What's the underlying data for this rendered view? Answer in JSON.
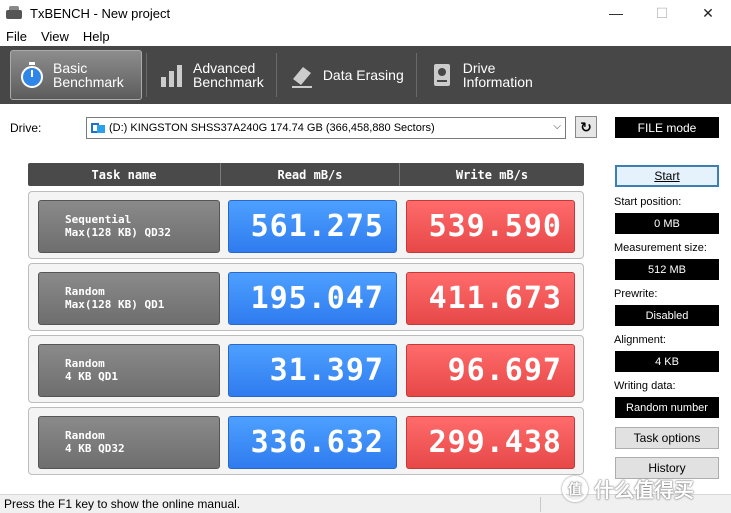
{
  "window": {
    "title": "TxBENCH - New project",
    "controls": {
      "minimize": "—",
      "maximize": "☐",
      "close": "✕"
    }
  },
  "menu": [
    "File",
    "View",
    "Help"
  ],
  "tabs": [
    {
      "label": "Basic\nBenchmark",
      "icon": "stopwatch-icon",
      "active": true
    },
    {
      "label": "Advanced\nBenchmark",
      "icon": "bar-chart-icon",
      "active": false
    },
    {
      "label": "Data Erasing",
      "icon": "eraser-icon",
      "active": false
    },
    {
      "label": "Drive\nInformation",
      "icon": "drive-info-icon",
      "active": false
    }
  ],
  "drive": {
    "label": "Drive:",
    "selected": "(D:) KINGSTON SHSS37A240G  174.74 GB (366,458,880 Sectors)",
    "mode": "FILE mode"
  },
  "table": {
    "headers": {
      "task": "Task name",
      "read": "Read mB/s",
      "write": "Write mB/s"
    },
    "rows": [
      {
        "task": "Sequential\nMax(128 KB) QD32",
        "read": "561.275",
        "write": "539.590"
      },
      {
        "task": "Random\nMax(128 KB) QD1",
        "read": "195.047",
        "write": "411.673"
      },
      {
        "task": "Random\n4 KB QD1",
        "read": "31.397",
        "write": "96.697"
      },
      {
        "task": "Random\n4 KB QD32",
        "read": "336.632",
        "write": "299.438"
      }
    ]
  },
  "settings": {
    "start_label": "Start",
    "start_position": {
      "label": "Start position:",
      "value": "0 MB"
    },
    "measurement_size": {
      "label": "Measurement size:",
      "value": "512 MB"
    },
    "prewrite": {
      "label": "Prewrite:",
      "value": "Disabled"
    },
    "alignment": {
      "label": "Alignment:",
      "value": "4 KB"
    },
    "writing_data": {
      "label": "Writing data:",
      "value": "Random number"
    },
    "task_options_label": "Task options",
    "history_label": "History"
  },
  "status": "Press the F1 key to show the online manual.",
  "watermark": "什么值得买",
  "colors": {
    "read": "#3a8cf7",
    "write": "#f05656",
    "toolbar": "#474747"
  }
}
